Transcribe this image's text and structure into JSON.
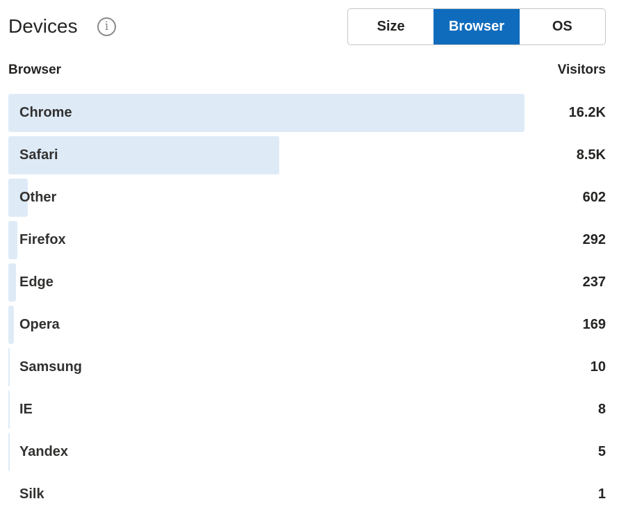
{
  "header": {
    "title": "Devices",
    "info_icon": "info-icon"
  },
  "tabs": [
    {
      "label": "Size",
      "active": false
    },
    {
      "label": "Browser",
      "active": true
    },
    {
      "label": "OS",
      "active": false
    }
  ],
  "table": {
    "col_label": "Browser",
    "col_value": "Visitors",
    "rows": [
      {
        "label": "Chrome",
        "value": "16.2K",
        "count": 16200
      },
      {
        "label": "Safari",
        "value": "8.5K",
        "count": 8500
      },
      {
        "label": "Other",
        "value": "602",
        "count": 602
      },
      {
        "label": "Firefox",
        "value": "292",
        "count": 292
      },
      {
        "label": "Edge",
        "value": "237",
        "count": 237
      },
      {
        "label": "Opera",
        "value": "169",
        "count": 169
      },
      {
        "label": "Samsung",
        "value": "10",
        "count": 10
      },
      {
        "label": "IE",
        "value": "8",
        "count": 8
      },
      {
        "label": "Yandex",
        "value": "5",
        "count": 5
      },
      {
        "label": "Silk",
        "value": "1",
        "count": 1
      }
    ]
  },
  "colors": {
    "accent": "#0f6cbd",
    "bar": "#deebf7"
  }
}
